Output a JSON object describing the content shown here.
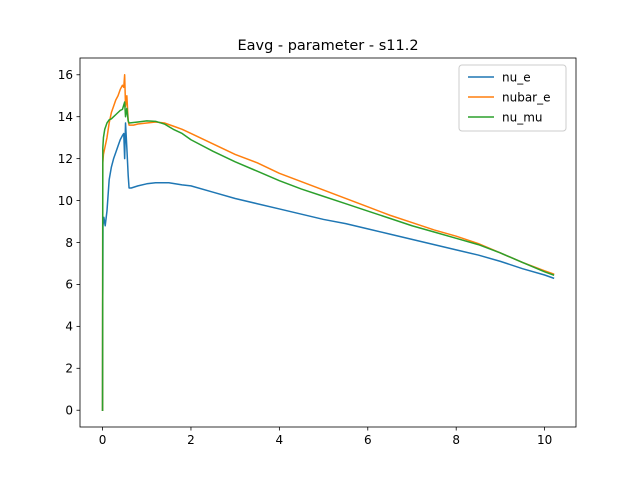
{
  "chart_data": {
    "type": "line",
    "title": "Eavg - parameter - s11.2",
    "xlabel": "",
    "ylabel": "",
    "xlim": [
      -0.51,
      10.71
    ],
    "ylim": [
      -0.8,
      16.8
    ],
    "xticks": [
      0,
      2,
      4,
      6,
      8,
      10
    ],
    "yticks": [
      0,
      2,
      4,
      6,
      8,
      10,
      12,
      14,
      16
    ],
    "grid": false,
    "legend_position": "top-right",
    "series": [
      {
        "name": "nu_e",
        "color": "#1f77b4",
        "points": [
          [
            0.0,
            0.0
          ],
          [
            0.003,
            5.0
          ],
          [
            0.006,
            5.8
          ],
          [
            0.01,
            8.8
          ],
          [
            0.03,
            9.2
          ],
          [
            0.06,
            8.8
          ],
          [
            0.1,
            9.5
          ],
          [
            0.15,
            11.0
          ],
          [
            0.2,
            11.6
          ],
          [
            0.25,
            12.0
          ],
          [
            0.3,
            12.3
          ],
          [
            0.35,
            12.6
          ],
          [
            0.4,
            12.9
          ],
          [
            0.45,
            13.1
          ],
          [
            0.48,
            13.2
          ],
          [
            0.5,
            12.0
          ],
          [
            0.52,
            13.7
          ],
          [
            0.55,
            12.5
          ],
          [
            0.58,
            11.2
          ],
          [
            0.6,
            10.6
          ],
          [
            0.65,
            10.6
          ],
          [
            0.8,
            10.7
          ],
          [
            1.0,
            10.8
          ],
          [
            1.2,
            10.85
          ],
          [
            1.5,
            10.85
          ],
          [
            1.8,
            10.75
          ],
          [
            2.0,
            10.7
          ],
          [
            2.5,
            10.4
          ],
          [
            3.0,
            10.1
          ],
          [
            3.5,
            9.85
          ],
          [
            4.0,
            9.6
          ],
          [
            4.5,
            9.35
          ],
          [
            5.0,
            9.1
          ],
          [
            5.5,
            8.9
          ],
          [
            6.0,
            8.65
          ],
          [
            6.5,
            8.4
          ],
          [
            7.0,
            8.15
          ],
          [
            7.5,
            7.9
          ],
          [
            8.0,
            7.65
          ],
          [
            8.5,
            7.4
          ],
          [
            9.0,
            7.1
          ],
          [
            9.5,
            6.75
          ],
          [
            10.0,
            6.45
          ],
          [
            10.2,
            6.3
          ]
        ]
      },
      {
        "name": "nubar_e",
        "color": "#ff7f0e",
        "points": [
          [
            0.0,
            0.0
          ],
          [
            0.003,
            9.0
          ],
          [
            0.006,
            11.8
          ],
          [
            0.02,
            12.2
          ],
          [
            0.05,
            12.5
          ],
          [
            0.1,
            13.0
          ],
          [
            0.15,
            13.7
          ],
          [
            0.2,
            14.2
          ],
          [
            0.25,
            14.5
          ],
          [
            0.3,
            14.8
          ],
          [
            0.35,
            15.0
          ],
          [
            0.4,
            15.3
          ],
          [
            0.45,
            15.5
          ],
          [
            0.48,
            15.4
          ],
          [
            0.5,
            16.0
          ],
          [
            0.52,
            14.5
          ],
          [
            0.55,
            15.0
          ],
          [
            0.58,
            13.8
          ],
          [
            0.6,
            13.6
          ],
          [
            0.7,
            13.6
          ],
          [
            0.8,
            13.65
          ],
          [
            1.0,
            13.7
          ],
          [
            1.2,
            13.75
          ],
          [
            1.4,
            13.7
          ],
          [
            1.6,
            13.55
          ],
          [
            1.8,
            13.4
          ],
          [
            2.0,
            13.2
          ],
          [
            2.5,
            12.7
          ],
          [
            3.0,
            12.2
          ],
          [
            3.5,
            11.8
          ],
          [
            4.0,
            11.3
          ],
          [
            4.5,
            10.9
          ],
          [
            5.0,
            10.5
          ],
          [
            5.5,
            10.1
          ],
          [
            6.0,
            9.7
          ],
          [
            6.5,
            9.3
          ],
          [
            7.0,
            8.95
          ],
          [
            7.5,
            8.6
          ],
          [
            8.0,
            8.3
          ],
          [
            8.5,
            7.95
          ],
          [
            9.0,
            7.5
          ],
          [
            9.5,
            7.05
          ],
          [
            10.0,
            6.65
          ],
          [
            10.2,
            6.5
          ]
        ]
      },
      {
        "name": "nu_mu",
        "color": "#2ca02c",
        "points": [
          [
            0.0,
            0.0
          ],
          [
            0.003,
            4.8
          ],
          [
            0.006,
            12.5
          ],
          [
            0.02,
            13.0
          ],
          [
            0.05,
            13.4
          ],
          [
            0.1,
            13.7
          ],
          [
            0.15,
            13.85
          ],
          [
            0.2,
            13.9
          ],
          [
            0.25,
            14.0
          ],
          [
            0.3,
            14.1
          ],
          [
            0.35,
            14.2
          ],
          [
            0.4,
            14.3
          ],
          [
            0.45,
            14.35
          ],
          [
            0.5,
            14.7
          ],
          [
            0.52,
            14.0
          ],
          [
            0.55,
            14.4
          ],
          [
            0.58,
            13.8
          ],
          [
            0.6,
            13.7
          ],
          [
            0.8,
            13.75
          ],
          [
            1.0,
            13.8
          ],
          [
            1.2,
            13.78
          ],
          [
            1.4,
            13.65
          ],
          [
            1.6,
            13.4
          ],
          [
            1.8,
            13.2
          ],
          [
            2.0,
            12.9
          ],
          [
            2.5,
            12.35
          ],
          [
            3.0,
            11.85
          ],
          [
            3.5,
            11.4
          ],
          [
            4.0,
            10.95
          ],
          [
            4.5,
            10.55
          ],
          [
            5.0,
            10.2
          ],
          [
            5.5,
            9.85
          ],
          [
            6.0,
            9.5
          ],
          [
            6.5,
            9.15
          ],
          [
            7.0,
            8.8
          ],
          [
            7.5,
            8.5
          ],
          [
            8.0,
            8.2
          ],
          [
            8.5,
            7.9
          ],
          [
            9.0,
            7.5
          ],
          [
            9.5,
            7.05
          ],
          [
            10.0,
            6.6
          ],
          [
            10.2,
            6.45
          ]
        ]
      }
    ]
  }
}
